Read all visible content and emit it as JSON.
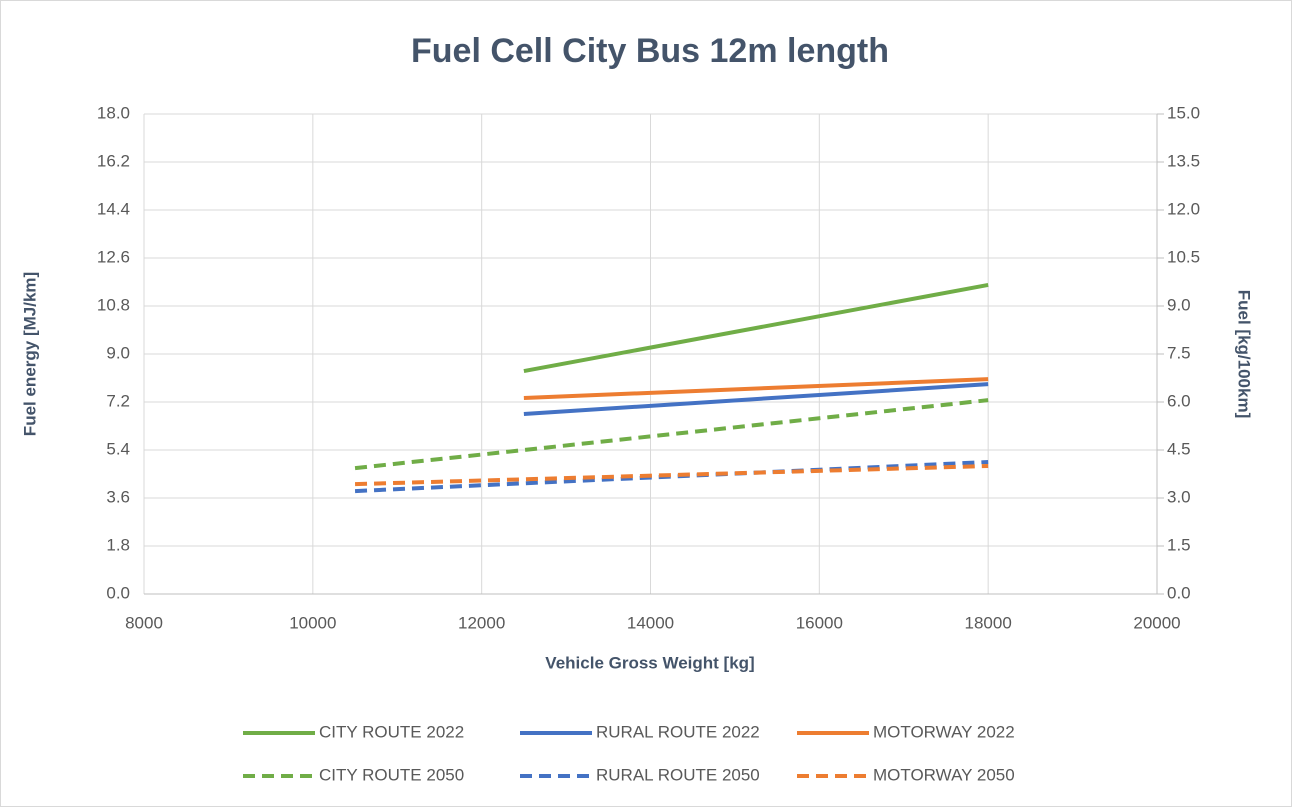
{
  "chart_data": {
    "type": "line",
    "title": "Fuel Cell City Bus 12m length",
    "xlabel": "Vehicle Gross Weight [kg]",
    "ylabel": "Fuel energy [MJ/km]",
    "y2label": "Fuel [kg/100km]",
    "xlim": [
      8000,
      20000
    ],
    "xticks": [
      8000,
      10000,
      12000,
      14000,
      16000,
      18000,
      20000
    ],
    "ylim": [
      0,
      18
    ],
    "yticks": [
      {
        "value": 0,
        "label": "0.0"
      },
      1.8,
      3.6,
      5.4,
      7.2,
      {
        "value": 9,
        "label": "9.0"
      },
      10.8,
      12.6,
      14.4,
      16.2,
      {
        "value": 18,
        "label": "18.0"
      }
    ],
    "y2lim": [
      0,
      15
    ],
    "y2ticks": [
      {
        "value": 0,
        "label": "0.0"
      },
      1.5,
      {
        "value": 3,
        "label": "3.0"
      },
      4.5,
      {
        "value": 6,
        "label": "6.0"
      },
      7.5,
      {
        "value": 9,
        "label": "9.0"
      },
      10.5,
      {
        "value": 12,
        "label": "12.0"
      },
      13.5,
      {
        "value": 15,
        "label": "15.0"
      }
    ],
    "grid": true,
    "legend": "bottom",
    "series": [
      {
        "name": "CITY ROUTE 2022",
        "color": "#70ad47",
        "style": "solid",
        "x": [
          12500,
          18000
        ],
        "values": [
          8.36,
          11.59
        ]
      },
      {
        "name": "RURAL ROUTE 2022",
        "color": "#4472c4",
        "style": "solid",
        "x": [
          12500,
          18000
        ],
        "values": [
          6.75,
          7.87
        ]
      },
      {
        "name": "MOTORWAY 2022",
        "color": "#ed7d31",
        "style": "solid",
        "x": [
          12500,
          18000
        ],
        "values": [
          7.35,
          8.06
        ]
      },
      {
        "name": "CITY ROUTE 2050",
        "color": "#70ad47",
        "style": "dashed",
        "x": [
          10500,
          18000
        ],
        "values": [
          4.72,
          7.27
        ]
      },
      {
        "name": "RURAL ROUTE 2050",
        "color": "#4472c4",
        "style": "dashed",
        "x": [
          10500,
          18000
        ],
        "values": [
          3.86,
          4.95
        ]
      },
      {
        "name": "MOTORWAY 2050",
        "color": "#ed7d31",
        "style": "dashed",
        "x": [
          10500,
          18000
        ],
        "values": [
          4.12,
          4.8
        ]
      }
    ]
  }
}
